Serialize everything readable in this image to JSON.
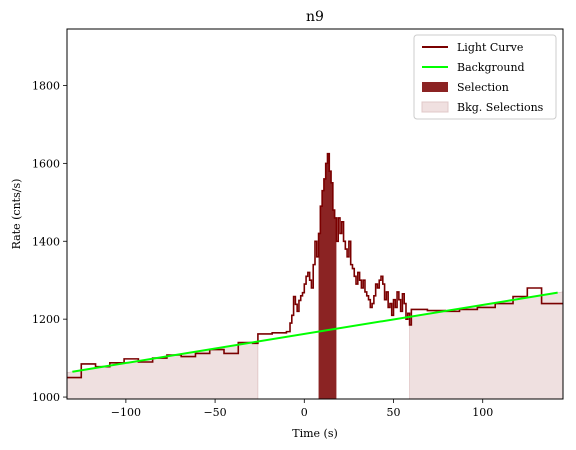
{
  "chart_data": {
    "type": "line",
    "title": "n9",
    "xlabel": "Time (s)",
    "ylabel": "Rate (cnts/s)",
    "xlim": [
      -133,
      145
    ],
    "ylim": [
      995,
      1945
    ],
    "xticks": [
      -100,
      -50,
      0,
      50,
      100
    ],
    "yticks": [
      1000,
      1200,
      1400,
      1600,
      1800
    ],
    "legend_position": "top-right",
    "legend": [
      {
        "label": "Light Curve",
        "kind": "line",
        "color": "#7a0000"
      },
      {
        "label": "Background",
        "kind": "line",
        "color": "#00ff00"
      },
      {
        "label": "Selection",
        "kind": "patch",
        "color": "#8b2323"
      },
      {
        "label": "Bkg. Selections",
        "kind": "patch",
        "color": "#f0e0e0"
      }
    ],
    "colors": {
      "light_curve": "#7a0000",
      "background": "#00ff00",
      "selection": "#8b2323",
      "bkg_selection": "#efe0e0"
    },
    "background_fit": {
      "x": [
        -130,
        142
      ],
      "y": [
        1065,
        1268
      ]
    },
    "selection": {
      "x0": 8,
      "x1": 18
    },
    "bkg_selections": [
      {
        "x0": -133,
        "x1": -26
      },
      {
        "x0": 59,
        "x1": 145
      }
    ],
    "light_curve_coarse_left": [
      [
        -133,
        1050
      ],
      [
        -125,
        1085
      ],
      [
        -117,
        1078
      ],
      [
        -109,
        1088
      ],
      [
        -101,
        1098
      ],
      [
        -93,
        1090
      ],
      [
        -85,
        1100
      ],
      [
        -77,
        1108
      ],
      [
        -69,
        1104
      ],
      [
        -61,
        1112
      ],
      [
        -53,
        1122
      ],
      [
        -45,
        1112
      ],
      [
        -37,
        1140
      ],
      [
        -29,
        1138
      ],
      [
        -26,
        1162
      ],
      [
        -18,
        1165
      ]
    ],
    "light_curve_fine": [
      [
        -10,
        1168
      ],
      [
        -8,
        1190
      ],
      [
        -7,
        1210
      ],
      [
        -6,
        1258
      ],
      [
        -5,
        1238
      ],
      [
        -4,
        1220
      ],
      [
        -3,
        1248
      ],
      [
        -2,
        1260
      ],
      [
        -1,
        1268
      ],
      [
        0,
        1290
      ],
      [
        1,
        1310
      ],
      [
        2,
        1320
      ],
      [
        3,
        1300
      ],
      [
        4,
        1280
      ],
      [
        5,
        1340
      ],
      [
        6,
        1400
      ],
      [
        7,
        1360
      ],
      [
        8,
        1420
      ],
      [
        9,
        1490
      ],
      [
        10,
        1530
      ],
      [
        11,
        1560
      ],
      [
        12,
        1600
      ],
      [
        13,
        1625
      ],
      [
        14,
        1580
      ],
      [
        15,
        1550
      ],
      [
        16,
        1480
      ],
      [
        17,
        1460
      ],
      [
        18,
        1400
      ],
      [
        19,
        1460
      ],
      [
        20,
        1420
      ],
      [
        21,
        1450
      ],
      [
        22,
        1400
      ],
      [
        23,
        1380
      ],
      [
        24,
        1360
      ],
      [
        25,
        1400
      ],
      [
        26,
        1340
      ],
      [
        27,
        1330
      ],
      [
        28,
        1310
      ],
      [
        29,
        1290
      ],
      [
        30,
        1320
      ],
      [
        31,
        1300
      ],
      [
        32,
        1280
      ],
      [
        33,
        1300
      ],
      [
        34,
        1270
      ],
      [
        35,
        1260
      ],
      [
        36,
        1250
      ],
      [
        37,
        1230
      ],
      [
        38,
        1240
      ],
      [
        39,
        1260
      ],
      [
        40,
        1290
      ],
      [
        41,
        1280
      ],
      [
        42,
        1300
      ],
      [
        43,
        1310
      ],
      [
        44,
        1290
      ],
      [
        45,
        1250
      ],
      [
        46,
        1270
      ],
      [
        47,
        1230
      ],
      [
        48,
        1240
      ],
      [
        49,
        1210
      ],
      [
        50,
        1250
      ],
      [
        51,
        1230
      ],
      [
        52,
        1270
      ],
      [
        53,
        1250
      ],
      [
        54,
        1220
      ],
      [
        55,
        1265
      ],
      [
        56,
        1240
      ],
      [
        57,
        1200
      ],
      [
        58,
        1215
      ],
      [
        59,
        1185
      ],
      [
        60,
        1225
      ]
    ],
    "light_curve_coarse_right": [
      [
        60,
        1225
      ],
      [
        69,
        1222
      ],
      [
        79,
        1220
      ],
      [
        87,
        1225
      ],
      [
        97,
        1230
      ],
      [
        107,
        1240
      ],
      [
        117,
        1258
      ],
      [
        125,
        1280
      ],
      [
        133,
        1240
      ],
      [
        145,
        1240
      ]
    ]
  }
}
